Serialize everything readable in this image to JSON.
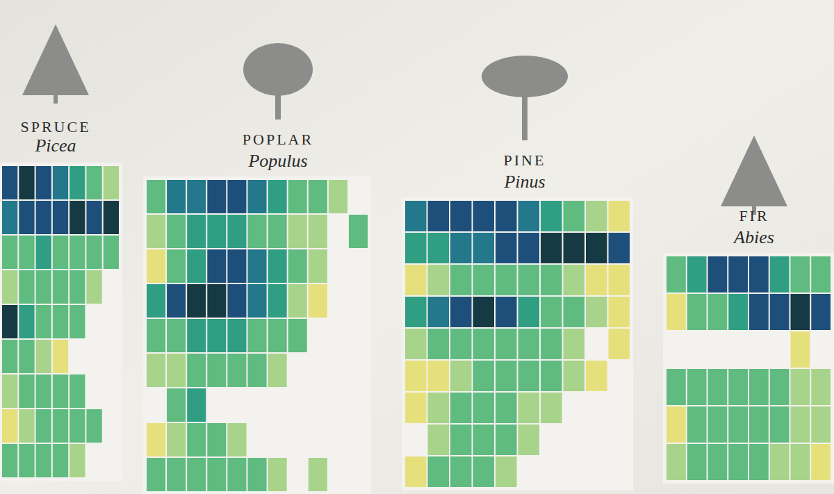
{
  "chart_data": {
    "type": "heatmap",
    "zlim": [
      1,
      7
    ],
    "panels": [
      {
        "name": "SPRUCE",
        "latin": "Picea",
        "cells": [
          [
            6,
            7,
            6,
            5,
            4,
            3,
            2
          ],
          [
            5,
            6,
            6,
            6,
            7,
            6,
            7
          ],
          [
            3,
            3,
            4,
            3,
            3,
            3,
            3
          ],
          [
            2,
            3,
            3,
            3,
            3,
            2,
            null
          ],
          [
            7,
            4,
            3,
            3,
            3,
            null,
            null
          ],
          [
            3,
            3,
            2,
            1,
            null,
            null,
            null
          ],
          [
            2,
            3,
            3,
            3,
            3,
            null,
            null
          ],
          [
            1,
            2,
            3,
            3,
            3,
            3,
            null
          ],
          [
            3,
            3,
            3,
            3,
            2,
            null,
            null
          ]
        ]
      },
      {
        "name": "POPLAR",
        "latin": "Populus",
        "cells": [
          [
            3,
            5,
            5,
            6,
            6,
            5,
            4,
            3,
            3,
            2,
            null
          ],
          [
            2,
            3,
            4,
            4,
            4,
            3,
            3,
            2,
            2,
            null,
            3
          ],
          [
            1,
            3,
            4,
            6,
            6,
            5,
            4,
            3,
            2,
            null,
            null
          ],
          [
            4,
            6,
            7,
            7,
            6,
            5,
            4,
            2,
            1,
            null,
            null
          ],
          [
            3,
            3,
            4,
            4,
            4,
            3,
            3,
            3,
            null,
            null,
            null
          ],
          [
            2,
            2,
            3,
            3,
            3,
            3,
            2,
            null,
            null,
            null,
            null
          ],
          [
            null,
            3,
            4,
            null,
            null,
            null,
            null,
            null,
            null,
            null,
            null
          ],
          [
            1,
            2,
            3,
            3,
            2,
            null,
            null,
            null,
            null,
            null,
            null
          ],
          [
            3,
            3,
            3,
            3,
            3,
            3,
            2,
            null,
            2,
            null,
            null
          ]
        ]
      },
      {
        "name": "PINE",
        "latin": "Pinus",
        "cells": [
          [
            5,
            6,
            6,
            6,
            6,
            5,
            4,
            3,
            2,
            1
          ],
          [
            4,
            4,
            5,
            5,
            6,
            6,
            7,
            7,
            7,
            6
          ],
          [
            1,
            2,
            3,
            3,
            3,
            3,
            3,
            2,
            1,
            1
          ],
          [
            4,
            5,
            6,
            7,
            6,
            4,
            3,
            3,
            2,
            1
          ],
          [
            2,
            3,
            3,
            3,
            3,
            3,
            3,
            2,
            null,
            1
          ],
          [
            1,
            1,
            2,
            3,
            3,
            3,
            3,
            2,
            1,
            null
          ],
          [
            1,
            2,
            3,
            3,
            3,
            2,
            2,
            null,
            null,
            null
          ],
          [
            null,
            2,
            3,
            3,
            3,
            2,
            null,
            null,
            null,
            null
          ],
          [
            1,
            3,
            3,
            3,
            2,
            null,
            null,
            null,
            null,
            null
          ]
        ]
      },
      {
        "name": "FIR",
        "latin": "Abies",
        "cells": [
          [
            3,
            4,
            6,
            6,
            6,
            4,
            3,
            3
          ],
          [
            1,
            3,
            3,
            4,
            6,
            6,
            7,
            6
          ],
          [
            null,
            null,
            null,
            null,
            null,
            null,
            1,
            null
          ],
          [
            3,
            3,
            3,
            3,
            3,
            3,
            2,
            2
          ],
          [
            1,
            3,
            3,
            3,
            3,
            3,
            2,
            2
          ],
          [
            2,
            3,
            3,
            3,
            3,
            2,
            2,
            1
          ]
        ]
      }
    ]
  }
}
